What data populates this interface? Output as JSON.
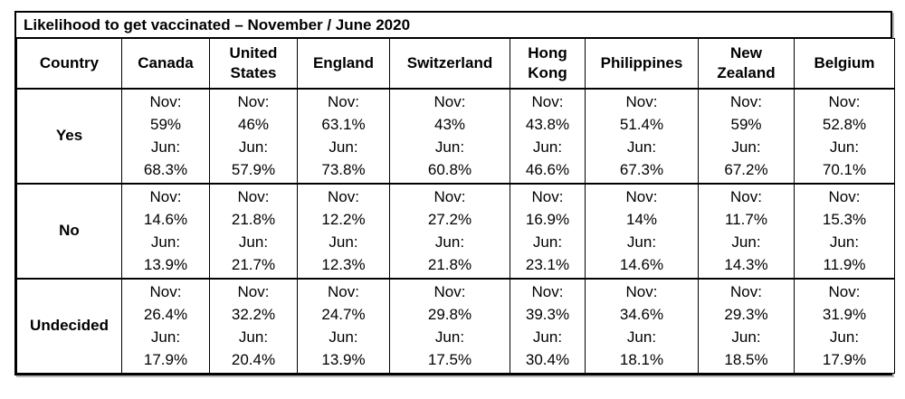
{
  "title": "Likelihood to get vaccinated – November / June 2020",
  "table": {
    "corner_label": "Country",
    "nov_prefix": "Nov:",
    "jun_prefix": "Jun:",
    "columns": [
      "Canada",
      "United States",
      "England",
      "Switzerland",
      "Hong Kong",
      "Philippines",
      "New Zealand",
      "Belgium"
    ],
    "rows": [
      {
        "label": "Yes",
        "nov": [
          "59%",
          "46%",
          "63.1%",
          "43%",
          "43.8%",
          "51.4%",
          "59%",
          "52.8%"
        ],
        "jun": [
          "68.3%",
          "57.9%",
          "73.8%",
          "60.8%",
          "46.6%",
          "67.3%",
          "67.2%",
          "70.1%"
        ]
      },
      {
        "label": "No",
        "nov": [
          "14.6%",
          "21.8%",
          "12.2%",
          "27.2%",
          "16.9%",
          "14%",
          "11.7%",
          "15.3%"
        ],
        "jun": [
          "13.9%",
          "21.7%",
          "12.3%",
          "21.8%",
          "23.1%",
          "14.6%",
          "14.3%",
          "11.9%"
        ]
      },
      {
        "label": "Undecided",
        "nov": [
          "26.4%",
          "32.2%",
          "24.7%",
          "29.8%",
          "39.3%",
          "34.6%",
          "29.3%",
          "31.9%"
        ],
        "jun": [
          "17.9%",
          "20.4%",
          "13.9%",
          "17.5%",
          "30.4%",
          "18.1%",
          "18.5%",
          "17.9%"
        ]
      }
    ]
  },
  "chart_data": {
    "type": "table",
    "title": "Likelihood to get vaccinated – November / June 2020",
    "categories": [
      "Canada",
      "United States",
      "England",
      "Switzerland",
      "Hong Kong",
      "Philippines",
      "New Zealand",
      "Belgium"
    ],
    "series": [
      {
        "name": "Yes – Nov",
        "values": [
          59,
          46,
          63.1,
          43,
          43.8,
          51.4,
          59,
          52.8
        ]
      },
      {
        "name": "Yes – Jun",
        "values": [
          68.3,
          57.9,
          73.8,
          60.8,
          46.6,
          67.3,
          67.2,
          70.1
        ]
      },
      {
        "name": "No – Nov",
        "values": [
          14.6,
          21.8,
          12.2,
          27.2,
          16.9,
          14,
          11.7,
          15.3
        ]
      },
      {
        "name": "No – Jun",
        "values": [
          13.9,
          21.7,
          12.3,
          21.8,
          23.1,
          14.6,
          14.3,
          11.9
        ]
      },
      {
        "name": "Undecided – Nov",
        "values": [
          26.4,
          32.2,
          24.7,
          29.8,
          39.3,
          34.6,
          29.3,
          31.9
        ]
      },
      {
        "name": "Undecided – Jun",
        "values": [
          17.9,
          20.4,
          13.9,
          17.5,
          30.4,
          18.1,
          18.5,
          17.9
        ]
      }
    ],
    "row_groups": [
      "Yes",
      "No",
      "Undecided"
    ],
    "units": "%"
  }
}
